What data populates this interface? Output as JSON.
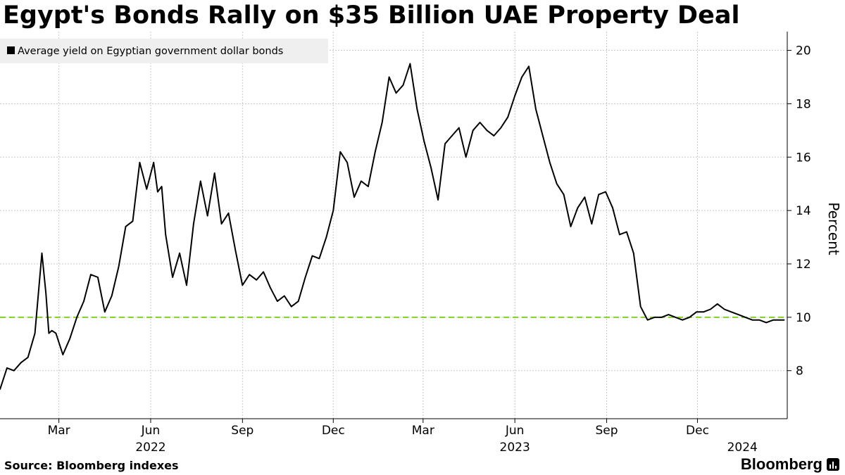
{
  "title": "Egypt's Bonds Rally on $35 Billion UAE Property Deal",
  "source": "Source:  Bloomberg indexes",
  "brand": "Bloomberg",
  "colors": {
    "line": "#000000",
    "reference": "#7ed321",
    "grid": "#c8c8c8",
    "legend_bg": "#efefef"
  },
  "chart_data": {
    "type": "line",
    "title": "Egypt's Bonds Rally on $35 Billion UAE Property Deal",
    "ylabel": "Percent",
    "xlabel": "",
    "ylim": [
      6.2,
      20.7
    ],
    "yticks": [
      8,
      10,
      12,
      14,
      16,
      18,
      20
    ],
    "x_range": [
      "2022-01-01",
      "2024-02-29"
    ],
    "month_ticks": [
      {
        "label": "Mar",
        "date": "2022-03-01"
      },
      {
        "label": "Jun",
        "date": "2022-06-01"
      },
      {
        "label": "Sep",
        "date": "2022-09-01"
      },
      {
        "label": "Dec",
        "date": "2022-12-01"
      },
      {
        "label": "Mar",
        "date": "2023-03-01"
      },
      {
        "label": "Jun",
        "date": "2023-06-01"
      },
      {
        "label": "Sep",
        "date": "2023-09-01"
      },
      {
        "label": "Dec",
        "date": "2023-12-01"
      }
    ],
    "year_labels": [
      {
        "label": "2022",
        "date": "2022-06-01"
      },
      {
        "label": "2023",
        "date": "2023-06-01"
      },
      {
        "label": "2024",
        "date": "2024-01-15"
      }
    ],
    "legend": [
      "Average yield on Egyptian government dollar bonds"
    ],
    "reference_line": {
      "y": 10,
      "style": "dashed"
    },
    "series": [
      {
        "name": "Average yield on Egyptian government dollar bonds",
        "x": [
          "2022-01-01",
          "2022-01-08",
          "2022-01-15",
          "2022-01-22",
          "2022-01-29",
          "2022-02-05",
          "2022-02-12",
          "2022-02-16",
          "2022-02-19",
          "2022-02-22",
          "2022-02-26",
          "2022-03-05",
          "2022-03-12",
          "2022-03-19",
          "2022-03-26",
          "2022-04-02",
          "2022-04-09",
          "2022-04-16",
          "2022-04-23",
          "2022-04-30",
          "2022-05-07",
          "2022-05-14",
          "2022-05-21",
          "2022-05-28",
          "2022-06-04",
          "2022-06-08",
          "2022-06-12",
          "2022-06-16",
          "2022-06-23",
          "2022-06-30",
          "2022-07-07",
          "2022-07-14",
          "2022-07-21",
          "2022-07-28",
          "2022-08-04",
          "2022-08-11",
          "2022-08-18",
          "2022-08-25",
          "2022-09-01",
          "2022-09-08",
          "2022-09-15",
          "2022-09-22",
          "2022-09-29",
          "2022-10-06",
          "2022-10-13",
          "2022-10-20",
          "2022-10-27",
          "2022-11-03",
          "2022-11-10",
          "2022-11-17",
          "2022-11-24",
          "2022-12-01",
          "2022-12-08",
          "2022-12-15",
          "2022-12-22",
          "2022-12-29",
          "2023-01-05",
          "2023-01-12",
          "2023-01-19",
          "2023-01-26",
          "2023-02-02",
          "2023-02-09",
          "2023-02-16",
          "2023-02-23",
          "2023-03-02",
          "2023-03-09",
          "2023-03-16",
          "2023-03-23",
          "2023-03-30",
          "2023-04-06",
          "2023-04-13",
          "2023-04-20",
          "2023-04-27",
          "2023-05-04",
          "2023-05-11",
          "2023-05-18",
          "2023-05-25",
          "2023-06-01",
          "2023-06-08",
          "2023-06-15",
          "2023-06-22",
          "2023-06-29",
          "2023-07-06",
          "2023-07-13",
          "2023-07-20",
          "2023-07-27",
          "2023-08-03",
          "2023-08-10",
          "2023-08-17",
          "2023-08-24",
          "2023-08-31",
          "2023-09-07",
          "2023-09-14",
          "2023-09-21",
          "2023-09-28",
          "2023-10-05",
          "2023-10-12",
          "2023-10-19",
          "2023-10-26",
          "2023-11-02",
          "2023-11-09",
          "2023-11-16",
          "2023-11-23",
          "2023-11-30",
          "2023-12-07",
          "2023-12-14",
          "2023-12-21",
          "2023-12-28",
          "2024-01-04",
          "2024-01-11",
          "2024-01-18",
          "2024-01-25",
          "2024-02-01",
          "2024-02-08",
          "2024-02-15",
          "2024-02-22",
          "2024-02-26"
        ],
        "values": [
          7.3,
          8.1,
          8.0,
          8.3,
          8.5,
          9.4,
          12.4,
          10.9,
          9.4,
          9.5,
          9.4,
          8.6,
          9.2,
          10.0,
          10.6,
          11.6,
          11.5,
          10.2,
          10.8,
          11.9,
          13.4,
          13.6,
          15.8,
          14.8,
          15.8,
          14.7,
          14.9,
          13.1,
          11.5,
          12.4,
          11.2,
          13.5,
          15.1,
          13.8,
          15.4,
          13.5,
          13.9,
          12.5,
          11.2,
          11.6,
          11.4,
          11.7,
          11.1,
          10.6,
          10.8,
          10.4,
          10.6,
          11.5,
          12.3,
          12.2,
          13.0,
          14.0,
          16.2,
          15.8,
          14.5,
          15.1,
          14.9,
          16.2,
          17.3,
          19.0,
          18.4,
          18.7,
          19.5,
          17.8,
          16.6,
          15.6,
          14.4,
          16.5,
          16.8,
          17.1,
          16.0,
          17.0,
          17.3,
          17.0,
          16.8,
          17.1,
          17.5,
          18.3,
          19.0,
          19.4,
          17.8,
          16.8,
          15.8,
          15.0,
          14.6,
          13.4,
          14.1,
          14.5,
          13.5,
          14.6,
          14.7,
          14.1,
          13.1,
          13.2,
          12.4,
          10.4,
          9.9,
          10.0,
          10.0,
          10.1,
          10.0,
          9.9,
          10.0,
          10.2,
          10.2,
          10.3,
          10.5,
          10.3,
          10.2,
          10.1,
          10.0,
          9.9,
          9.9,
          9.8,
          9.9,
          9.9,
          9.9
        ]
      }
    ]
  }
}
